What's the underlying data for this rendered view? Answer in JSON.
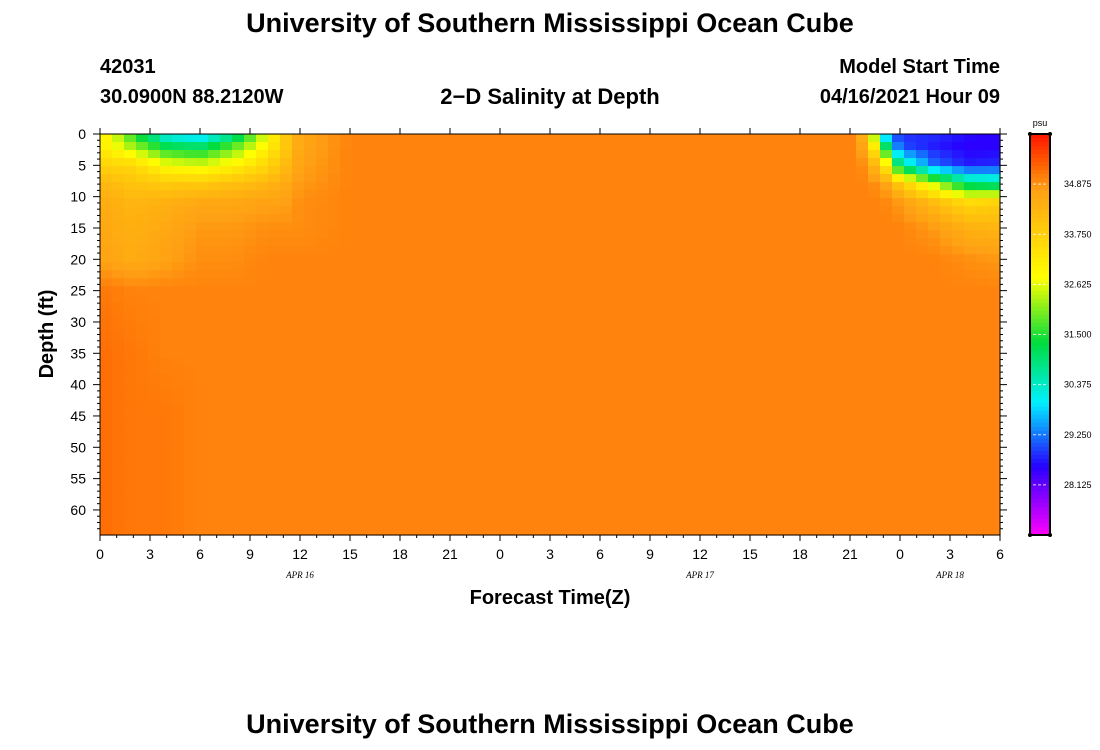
{
  "page": {
    "title_top": "University of Southern Mississippi Ocean Cube",
    "title_bottom": "University of Southern Mississippi Ocean Cube",
    "station_id": "42031",
    "station_coords": "30.0900N  88.2120W",
    "subtitle": "2−D Salinity at Depth",
    "model_start_label": "Model Start Time",
    "model_start_value": "04/16/2021 Hour 09"
  },
  "chart_data": {
    "type": "heatmap",
    "title": "2−D Salinity at Depth",
    "xlabel": "Forecast Time(Z)",
    "ylabel": "Depth (ft)",
    "x_tick_labels": [
      "0",
      "3",
      "6",
      "9",
      "12",
      "15",
      "18",
      "21",
      "0",
      "3",
      "6",
      "9",
      "12",
      "15",
      "18",
      "21",
      "0",
      "3",
      "6"
    ],
    "x_hours": [
      0,
      3,
      6,
      9,
      12,
      15,
      18,
      21,
      24,
      27,
      30,
      33,
      36,
      39,
      42,
      45,
      48,
      51,
      54
    ],
    "date_labels": [
      {
        "label": "APR  16",
        "hour": 12
      },
      {
        "label": "APR  17",
        "hour": 36
      },
      {
        "label": "APR  18",
        "hour": 51
      }
    ],
    "y_ticks": [
      0,
      5,
      10,
      15,
      20,
      25,
      30,
      35,
      40,
      45,
      50,
      55,
      60
    ],
    "xlim": [
      0,
      54
    ],
    "ylim": [
      0,
      64
    ],
    "colorbar": {
      "unit": "psu",
      "min": 27.0,
      "max": 36.0,
      "ticks": [
        "34.875",
        "33.750",
        "32.625",
        "31.500",
        "30.375",
        "29.250",
        "28.125"
      ]
    },
    "salinity_psu": {
      "depths_ft": [
        0,
        2,
        5,
        8,
        11,
        15,
        20,
        25,
        35,
        45,
        55,
        64
      ],
      "hours": [
        0,
        2,
        4,
        6,
        8,
        10,
        11,
        12,
        15,
        18,
        21,
        24,
        27,
        30,
        33,
        36,
        39,
        42,
        45,
        46,
        47,
        48,
        50,
        52,
        54
      ],
      "values": [
        [
          33.3,
          31.5,
          30.0,
          29.6,
          30.6,
          32.6,
          33.8,
          34.6,
          35.0,
          35.0,
          35.0,
          35.0,
          35.0,
          35.0,
          35.0,
          35.0,
          35.0,
          35.0,
          35.0,
          34.2,
          29.5,
          28.8,
          28.8,
          28.6,
          28.5
        ],
        [
          33.2,
          32.2,
          31.2,
          31.0,
          31.8,
          33.0,
          33.8,
          34.6,
          35.0,
          35.0,
          35.0,
          35.0,
          35.0,
          35.0,
          35.0,
          35.0,
          35.0,
          35.0,
          35.0,
          34.5,
          31.5,
          29.0,
          28.7,
          28.5,
          28.5
        ],
        [
          33.7,
          33.6,
          32.8,
          32.6,
          33.0,
          33.6,
          34.1,
          34.7,
          35.0,
          35.0,
          35.0,
          35.0,
          35.0,
          35.0,
          35.0,
          35.0,
          35.0,
          35.0,
          35.0,
          34.9,
          33.6,
          30.8,
          29.2,
          28.7,
          28.8
        ],
        [
          34.3,
          34.0,
          33.9,
          33.9,
          34.1,
          34.3,
          34.5,
          34.8,
          35.0,
          35.0,
          35.0,
          35.0,
          35.0,
          35.0,
          35.0,
          35.0,
          35.0,
          35.0,
          35.0,
          35.0,
          34.8,
          33.9,
          32.5,
          31.0,
          30.8
        ],
        [
          34.5,
          34.3,
          34.4,
          34.6,
          34.6,
          34.7,
          34.7,
          34.9,
          35.0,
          35.0,
          35.0,
          35.0,
          35.0,
          35.0,
          35.0,
          35.0,
          35.0,
          35.0,
          35.0,
          35.0,
          35.0,
          34.8,
          34.2,
          33.6,
          33.8
        ],
        [
          34.6,
          34.4,
          34.6,
          34.8,
          34.8,
          34.9,
          34.9,
          34.9,
          35.0,
          35.0,
          35.0,
          35.0,
          35.0,
          35.0,
          35.0,
          35.0,
          35.0,
          35.0,
          35.0,
          35.0,
          35.0,
          35.0,
          34.8,
          34.4,
          34.3
        ],
        [
          34.7,
          34.5,
          34.7,
          34.9,
          34.9,
          35.0,
          35.0,
          35.0,
          35.0,
          35.0,
          35.0,
          35.0,
          35.0,
          35.0,
          35.0,
          35.0,
          35.0,
          35.0,
          35.0,
          35.0,
          35.0,
          35.0,
          35.0,
          34.9,
          34.8
        ],
        [
          35.1,
          35.0,
          35.0,
          35.0,
          35.0,
          35.0,
          35.0,
          35.0,
          35.0,
          35.0,
          35.0,
          35.0,
          35.0,
          35.0,
          35.0,
          35.0,
          35.0,
          35.0,
          35.0,
          35.0,
          35.0,
          35.0,
          35.0,
          35.0,
          35.0
        ],
        [
          35.2,
          35.1,
          35.0,
          35.0,
          35.0,
          35.0,
          35.0,
          35.0,
          35.0,
          35.0,
          35.0,
          35.0,
          35.0,
          35.0,
          35.0,
          35.0,
          35.0,
          35.0,
          35.0,
          35.0,
          35.0,
          35.0,
          35.0,
          35.0,
          35.0
        ],
        [
          35.2,
          35.1,
          35.1,
          35.0,
          35.0,
          35.0,
          35.0,
          35.0,
          35.0,
          35.0,
          35.0,
          35.0,
          35.0,
          35.0,
          35.0,
          35.0,
          35.0,
          35.0,
          35.0,
          35.0,
          35.0,
          35.0,
          35.0,
          35.0,
          35.0
        ],
        [
          35.2,
          35.1,
          35.1,
          35.0,
          35.0,
          35.0,
          35.0,
          35.0,
          35.0,
          35.0,
          35.0,
          35.0,
          35.0,
          35.0,
          35.0,
          35.0,
          35.0,
          35.0,
          35.0,
          35.0,
          35.0,
          35.0,
          35.0,
          35.0,
          35.0
        ],
        [
          35.2,
          35.1,
          35.1,
          35.0,
          35.0,
          35.0,
          35.0,
          35.0,
          35.0,
          35.0,
          35.0,
          35.0,
          35.0,
          35.0,
          35.0,
          35.0,
          35.0,
          35.0,
          35.0,
          35.0,
          35.0,
          35.0,
          35.0,
          35.0,
          35.0
        ]
      ]
    }
  }
}
